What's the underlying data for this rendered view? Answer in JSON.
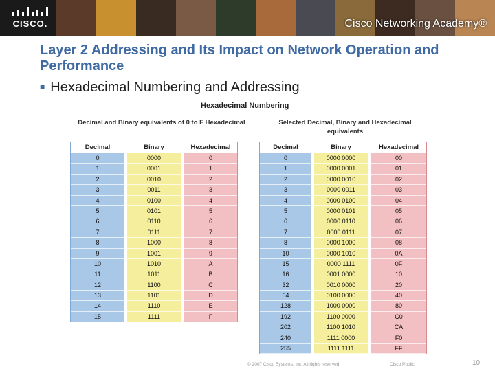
{
  "banner": {
    "logo_text": "CISCO.",
    "academy_text": "Cisco Networking Academy®"
  },
  "slide": {
    "title": "Layer 2 Addressing and Its Impact on Network Operation and Performance",
    "bullet": "Hexadecimal Numbering and Addressing"
  },
  "figure": {
    "heading": "Hexadecimal Numbering",
    "left_table": {
      "caption": "Decimal and Binary equivalents of 0 to F Hexadecimal",
      "headers": [
        "Decimal",
        "Binary",
        "Hexadecimal"
      ],
      "decimal": [
        "0",
        "1",
        "2",
        "3",
        "4",
        "5",
        "6",
        "7",
        "8",
        "9",
        "10",
        "11",
        "12",
        "13",
        "14",
        "15"
      ],
      "binary": [
        "0000",
        "0001",
        "0010",
        "0011",
        "0100",
        "0101",
        "0110",
        "0111",
        "1000",
        "1001",
        "1010",
        "1011",
        "1100",
        "1101",
        "1110",
        "1111"
      ],
      "hex": [
        "0",
        "1",
        "2",
        "3",
        "4",
        "5",
        "6",
        "7",
        "8",
        "9",
        "A",
        "B",
        "C",
        "D",
        "E",
        "F"
      ]
    },
    "right_table": {
      "caption": "Selected Decimal, Binary and Hexadecimal equivalents",
      "headers": [
        "Decimal",
        "Binary",
        "Hexadecimal"
      ],
      "decimal": [
        "0",
        "1",
        "2",
        "3",
        "4",
        "5",
        "6",
        "7",
        "8",
        "10",
        "15",
        "16",
        "32",
        "64",
        "128",
        "192",
        "202",
        "240",
        "255"
      ],
      "binary": [
        "0000 0000",
        "0000 0001",
        "0000 0010",
        "0000 0011",
        "0000 0100",
        "0000 0101",
        "0000 0110",
        "0000 0111",
        "0000 1000",
        "0000 1010",
        "0000 1111",
        "0001 0000",
        "0010 0000",
        "0100 0000",
        "1000 0000",
        "1100 0000",
        "1100 1010",
        "1111 0000",
        "1111 1111"
      ],
      "hex": [
        "00",
        "01",
        "02",
        "03",
        "04",
        "05",
        "06",
        "07",
        "08",
        "0A",
        "0F",
        "10",
        "20",
        "40",
        "80",
        "C0",
        "CA",
        "F0",
        "FF"
      ]
    }
  },
  "footer": {
    "copyright": "© 2007 Cisco Systems, Inc. All rights reserved.",
    "publication": "Cisco Public",
    "page_number": "10"
  }
}
